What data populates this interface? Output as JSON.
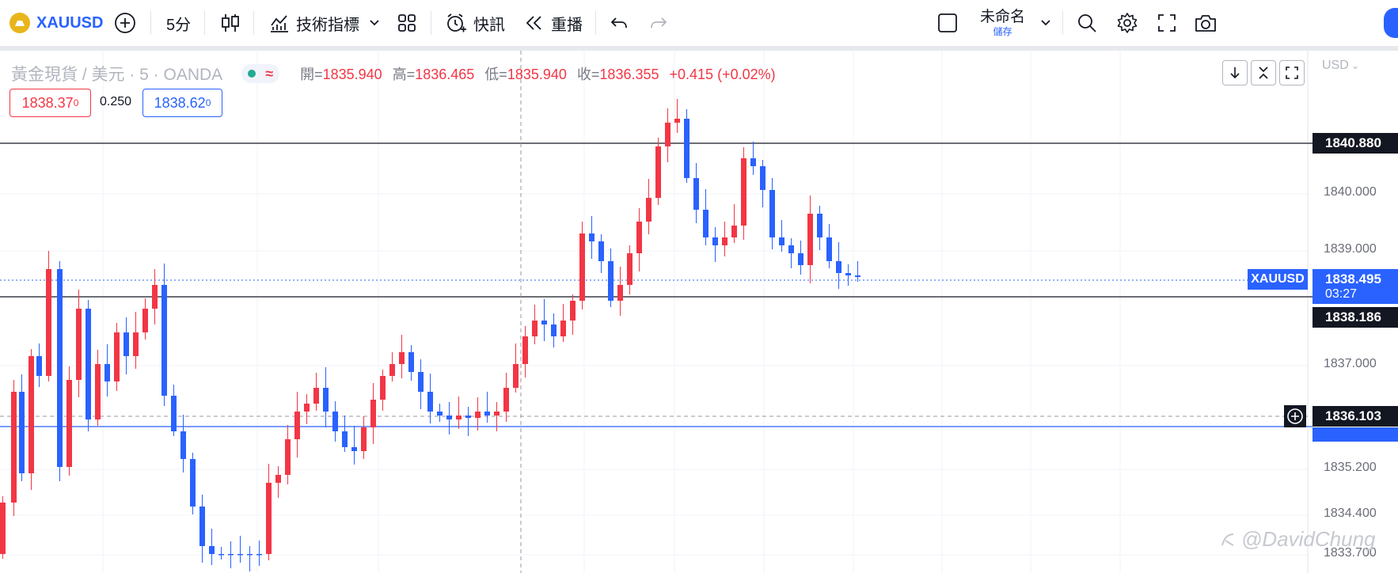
{
  "toolbar": {
    "symbol": "XAUUSD",
    "interval": "5分",
    "indicators_label": "技術指標",
    "alerts_label": "快訊",
    "replay_label": "重播",
    "layout_name": "未命名",
    "save_label": "儲存"
  },
  "legend": {
    "title": "黃金現貨 / 美元 · 5 · OANDA",
    "open_label": "開=",
    "open": "1835.940",
    "high_label": "高=",
    "high": "1836.465",
    "low_label": "低=",
    "low": "1835.940",
    "close_label": "收=",
    "close": "1836.355",
    "change": "+0.415 (+0.02%)",
    "bid": "1838.37",
    "bid_sup": "0",
    "spread": "0.250",
    "ask": "1838.62",
    "ask_sup": "0"
  },
  "price_axis": {
    "currency": "USD",
    "labels": [
      "1840.000",
      "1839.000",
      "1837.000",
      "1835.200",
      "1834.400",
      "1833.700"
    ]
  },
  "tags": {
    "upper_line": "1840.880",
    "symbol": "XAUUSD",
    "live_price": "1838.495",
    "countdown": "03:27",
    "lower_line": "1838.186",
    "crosshair": "1836.103"
  },
  "watermark": "@DavidChung",
  "colors": {
    "up": "#f23645",
    "down": "#2962ff",
    "accent": "#2962ff",
    "gold": "#e9b51c"
  }
}
